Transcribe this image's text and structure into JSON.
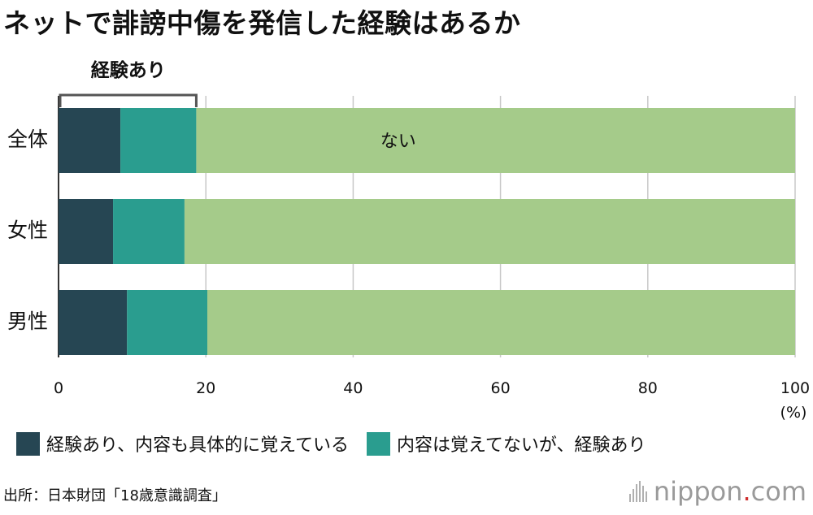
{
  "title": "ネットで誹謗中傷を発信した経験はあるか",
  "bracket_label": "経験あり",
  "inside_label": "ない",
  "unit_label": "(%)",
  "legend": [
    {
      "label": "経験あり、内容も具体的に覚えている",
      "color": "#264653"
    },
    {
      "label": "内容は覚えてないが、経験あり",
      "color": "#2a9d8f"
    }
  ],
  "source": "出所：日本財団「18歳意識調査」",
  "logo": {
    "brand": "nippon",
    "dot": ".",
    "tld": "com"
  },
  "chart_data": {
    "type": "bar",
    "orientation": "horizontal",
    "stacked": true,
    "categories": [
      "全体",
      "女性",
      "男性"
    ],
    "series": [
      {
        "name": "経験あり、内容も具体的に覚えている",
        "values": [
          8.4,
          7.4,
          9.3
        ],
        "color": "#264653"
      },
      {
        "name": "内容は覚えてないが、経験あり",
        "values": [
          10.3,
          9.7,
          10.9
        ],
        "color": "#2a9d8f"
      },
      {
        "name": "ない",
        "values": [
          81.3,
          82.9,
          79.8
        ],
        "color": "#a5cb8a"
      }
    ],
    "xlim": [
      0,
      100
    ],
    "xticks": [
      0,
      20,
      40,
      60,
      80,
      100
    ],
    "xlabel": "(%)",
    "grid": true
  }
}
